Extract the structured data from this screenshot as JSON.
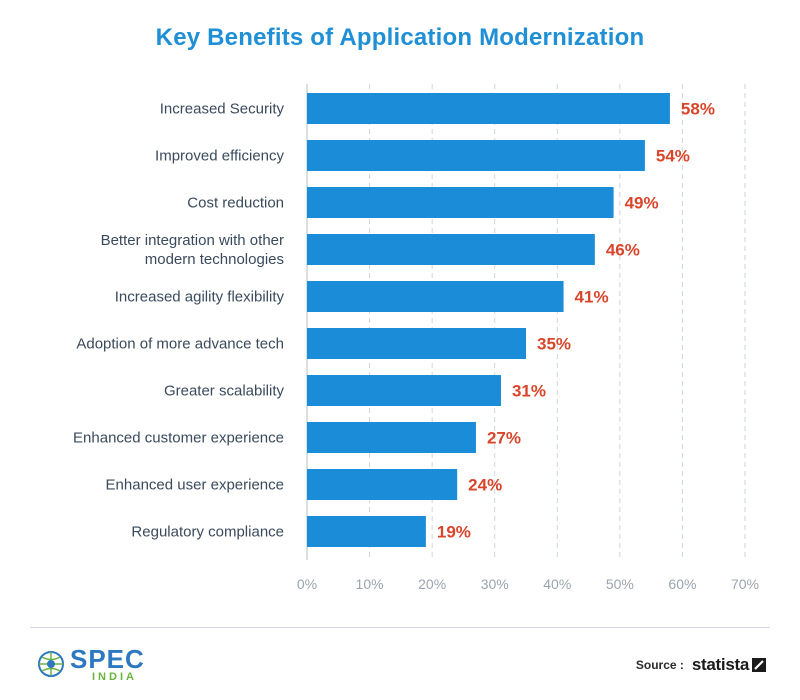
{
  "title": "Key Benefits of Application Modernization",
  "chart_data": {
    "type": "bar",
    "orientation": "horizontal",
    "categories": [
      "Increased Security",
      "Improved efficiency",
      "Cost reduction",
      "Better integration with other\nmodern technologies",
      "Increased agility flexibility",
      "Adoption of more advance tech",
      "Greater scalability",
      "Enhanced customer experience",
      "Enhanced user experience",
      "Regulatory compliance"
    ],
    "values": [
      58,
      54,
      49,
      46,
      41,
      35,
      31,
      27,
      24,
      19
    ],
    "value_labels": [
      "58%",
      "54%",
      "49%",
      "46%",
      "41%",
      "35%",
      "31%",
      "27%",
      "24%",
      "19%"
    ],
    "xlim": [
      0,
      70
    ],
    "xticks": [
      "0%",
      "10%",
      "20%",
      "30%",
      "40%",
      "50%",
      "60%",
      "70%"
    ],
    "grid": "vertical dashed",
    "bar_color": "#1a8cd8",
    "value_label_color": "#d9452b",
    "category_label_color": "#3a4a5c",
    "tick_label_color": "#9aa4ae"
  },
  "footer": {
    "logo_text": "SPEC",
    "logo_subtext": "INDIA",
    "source_label": "Source :",
    "source_brand": "statista"
  },
  "colors": {
    "title": "#1f8fd6",
    "logo_blue": "#2e78c2",
    "logo_green": "#6cb33f"
  }
}
